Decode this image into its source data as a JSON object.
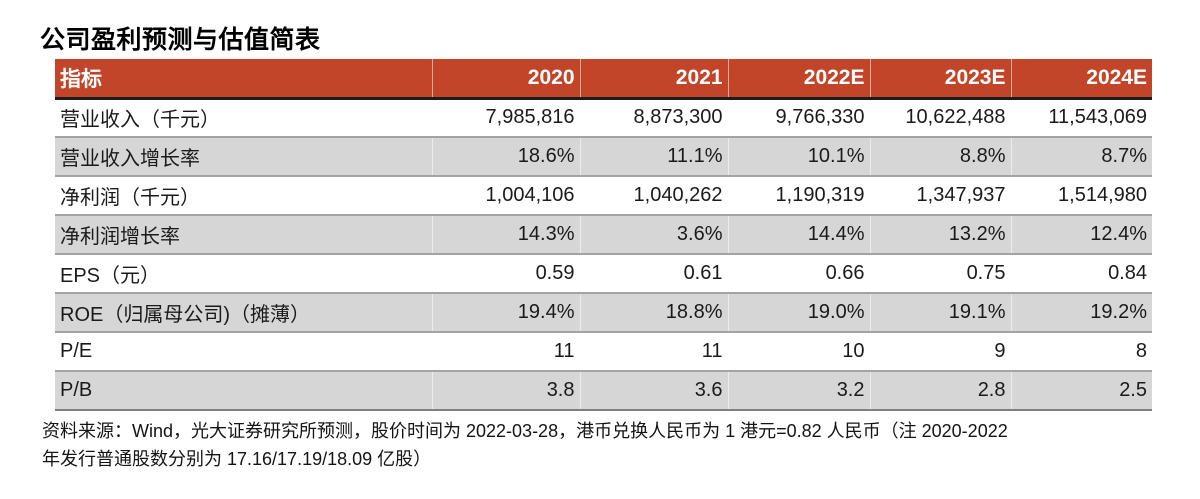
{
  "page": {
    "title": "公司盈利预测与估值简表"
  },
  "table": {
    "columns": [
      "指标",
      "2020",
      "2021",
      "2022E",
      "2023E",
      "2024E"
    ],
    "rows": [
      {
        "label": "营业收入（千元）",
        "values": [
          "7,985,816",
          "8,873,300",
          "9,766,330",
          "10,622,488",
          "11,543,069"
        ]
      },
      {
        "label": "营业收入增长率",
        "values": [
          "18.6%",
          "11.1%",
          "10.1%",
          "8.8%",
          "8.7%"
        ]
      },
      {
        "label": "净利润（千元）",
        "values": [
          "1,004,106",
          "1,040,262",
          "1,190,319",
          "1,347,937",
          "1,514,980"
        ]
      },
      {
        "label": "净利润增长率",
        "values": [
          "14.3%",
          "3.6%",
          "14.4%",
          "13.2%",
          "12.4%"
        ]
      },
      {
        "label": "EPS（元）",
        "values": [
          "0.59",
          "0.61",
          "0.66",
          "0.75",
          "0.84"
        ]
      },
      {
        "label": "ROE（归属母公司)（摊薄）",
        "values": [
          "19.4%",
          "18.8%",
          "19.0%",
          "19.1%",
          "19.2%"
        ]
      },
      {
        "label": "P/E",
        "values": [
          "11",
          "11",
          "10",
          "9",
          "8"
        ]
      },
      {
        "label": "P/B",
        "values": [
          "3.8",
          "3.6",
          "3.2",
          "2.8",
          "2.5"
        ]
      }
    ]
  },
  "footer": {
    "lines": [
      "资料来源：Wind，光大证券研究所预测，股价时间为 2022-03-28，港币兑换人民币为 1 港元=0.82 人民币（注 2020-2022",
      "年发行普通股数分别为 17.16/17.19/18.09 亿股）"
    ]
  },
  "colors": {
    "header_bg": "#C24429",
    "header_text": "#FFFFFF",
    "row_alt_bg": "#D6D6D6",
    "divider": "#A3A3A3",
    "header_border": "#1C1C1C",
    "bottom_border": "#808080",
    "text": "#1A1A1A"
  }
}
